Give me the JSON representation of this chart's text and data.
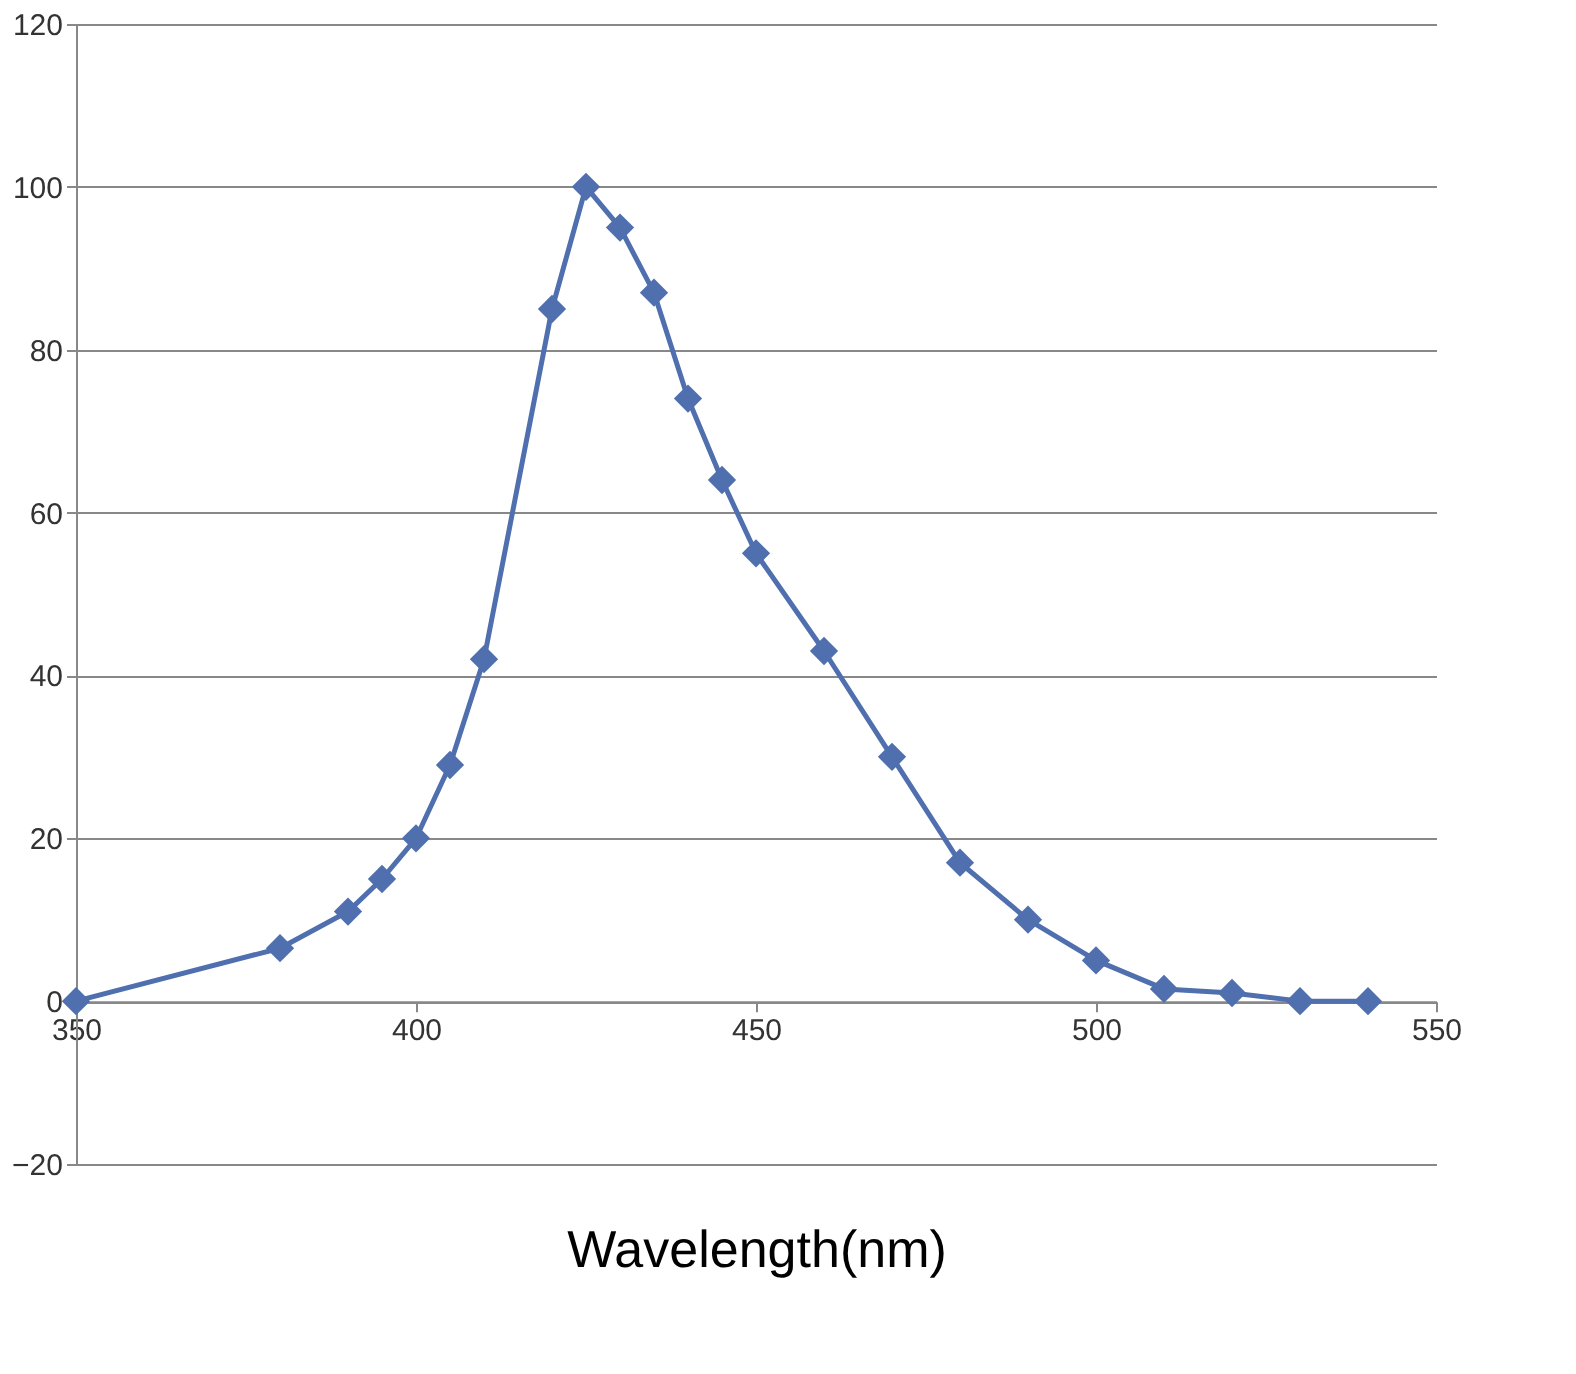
{
  "chart_data": {
    "type": "line",
    "xlabel": "Wavelength(nm)",
    "x": [
      350,
      380,
      390,
      395,
      400,
      405,
      410,
      420,
      425,
      430,
      435,
      440,
      445,
      450,
      460,
      470,
      480,
      490,
      500,
      510,
      520,
      530,
      540
    ],
    "series": [
      {
        "color": "#4f6fae",
        "values": [
          0,
          6.5,
          11,
          15,
          20,
          29,
          42,
          85,
          100,
          95,
          87,
          74,
          64,
          55,
          43,
          30,
          17,
          10,
          5,
          1.5,
          1,
          0,
          0
        ]
      }
    ],
    "xlim": [
      350,
      550
    ],
    "xticks": [
      350,
      400,
      450,
      500,
      550
    ],
    "ylim": [
      -20,
      120
    ],
    "yticks": [
      -20,
      0,
      20,
      40,
      60,
      80,
      100,
      120
    ],
    "grid": "y",
    "marker": "diamond",
    "line_style": "solid"
  }
}
